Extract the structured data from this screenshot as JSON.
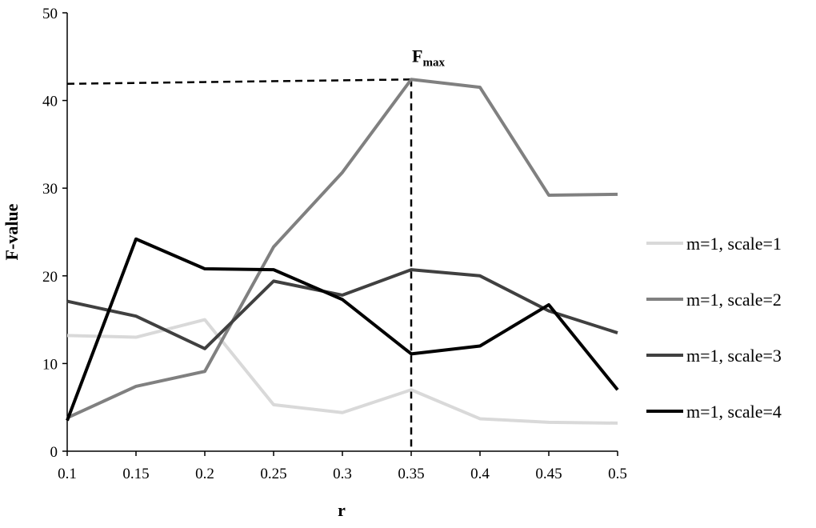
{
  "chart_data": {
    "type": "line",
    "xlabel": "r",
    "ylabel": "F-value",
    "x": [
      0.1,
      0.15,
      0.2,
      0.25,
      0.3,
      0.35,
      0.4,
      0.45,
      0.5
    ],
    "x_tick_labels": [
      "0.1",
      "0.15",
      "0.2",
      "0.25",
      "0.3",
      "0.35",
      "0.4",
      "0.45",
      "0.5"
    ],
    "ylim": [
      0,
      50
    ],
    "y_ticks": [
      0,
      10,
      20,
      30,
      40,
      50
    ],
    "grid": false,
    "legend_position": "right",
    "series": [
      {
        "name": "m=1, scale=1",
        "color": "#d9d9d9",
        "values": [
          13.2,
          13.0,
          15.0,
          5.3,
          4.4,
          7.0,
          3.7,
          3.3,
          3.2
        ]
      },
      {
        "name": "m=1, scale=2",
        "color": "#808080",
        "values": [
          3.8,
          7.4,
          9.1,
          23.3,
          31.8,
          42.4,
          41.5,
          29.2,
          29.3
        ]
      },
      {
        "name": "m=1, scale=3",
        "color": "#404040",
        "values": [
          17.1,
          15.4,
          11.7,
          19.4,
          17.8,
          20.7,
          20.0,
          16.0,
          13.5
        ]
      },
      {
        "name": "m=1, scale=4",
        "color": "#000000",
        "values": [
          3.5,
          24.2,
          20.8,
          20.7,
          17.3,
          11.1,
          12.0,
          16.7,
          7.0
        ]
      }
    ],
    "annotation": {
      "label": "F",
      "subscript": "max",
      "x": 0.35,
      "y_start": 41.9,
      "y": 42.4
    }
  }
}
